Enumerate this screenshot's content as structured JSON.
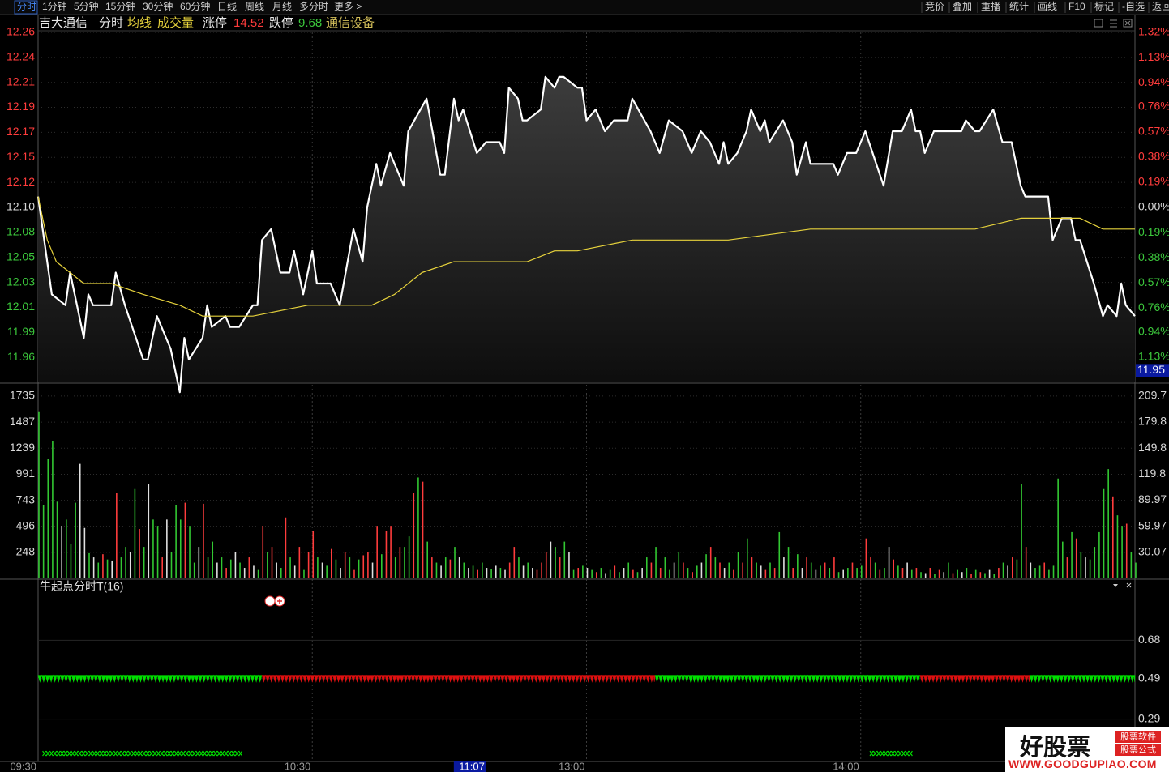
{
  "toolbar": {
    "left": [
      "分时",
      "1分钟",
      "5分钟",
      "15分钟",
      "30分钟",
      "60分钟",
      "日线",
      "周线",
      "月线",
      "多分时",
      "更多 >"
    ],
    "right": [
      "竞价",
      "叠加",
      "重播",
      "统计",
      "画线",
      "F10",
      "标记",
      "-自选",
      "返回"
    ]
  },
  "header": {
    "stock": "吉大通信",
    "limit_up_label": "涨停",
    "limit_up": 14.52,
    "limit_down_label": "跌停",
    "limit_down": 9.68,
    "industry": "通信设备"
  },
  "chart_data": [
    {
      "type": "line",
      "xlim": [
        0,
        240
      ],
      "ylim": [
        11.9391,
        12.2609
      ],
      "yticks": [
        {
          "value": 12.2609,
          "label": "12.26"
        },
        {
          "value": 12.2379,
          "label": "12.24"
        },
        {
          "value": 12.2149,
          "label": "12.21"
        },
        {
          "value": 12.192,
          "label": "12.19"
        },
        {
          "value": 12.169,
          "label": "12.17"
        },
        {
          "value": 12.146,
          "label": "12.15"
        },
        {
          "value": 12.123,
          "label": "12.12"
        },
        {
          "value": 12.1,
          "label": "12.10"
        },
        {
          "value": 12.077,
          "label": "12.08"
        },
        {
          "value": 12.054,
          "label": "12.05"
        },
        {
          "value": 12.031,
          "label": "12.03"
        },
        {
          "value": 12.008,
          "label": "12.01"
        },
        {
          "value": 11.9851,
          "label": "11.99"
        },
        {
          "value": 11.9621,
          "label": "11.96"
        }
      ],
      "y2lim": [
        -1.32,
        1.32
      ],
      "y2ticks": [
        {
          "value": 1.32,
          "label": "1.32%"
        },
        {
          "value": 1.13,
          "label": "1.13%"
        },
        {
          "value": 0.94,
          "label": "0.94%"
        },
        {
          "value": 0.76,
          "label": "0.76%"
        },
        {
          "value": 0.57,
          "label": "0.57%"
        },
        {
          "value": 0.38,
          "label": "0.38%"
        },
        {
          "value": 0.19,
          "label": "0.19%"
        },
        {
          "value": 0,
          "label": "0.00%"
        },
        {
          "value": -0.19,
          "label": "0.19%"
        },
        {
          "value": -0.38,
          "label": "0.38%"
        },
        {
          "value": -0.57,
          "label": "0.57%"
        },
        {
          "value": -0.76,
          "label": "0.76%"
        },
        {
          "value": -0.94,
          "label": "0.94%"
        },
        {
          "value": -1.13,
          "label": "1.13%"
        }
      ],
      "up_color": "#ff3c3c",
      "down_color": "#3cc83c",
      "flat_color": "#d8d8d8",
      "grid": true,
      "cursor_price": 11.95,
      "series": [
        {
          "name": "分时",
          "color": "#ffffff",
          "x": [
            0,
            3,
            6,
            7,
            10,
            11,
            12,
            16,
            17,
            19,
            23,
            24,
            26,
            29,
            31,
            32,
            33,
            36,
            37,
            38,
            41,
            42,
            44,
            47,
            48,
            49,
            51,
            53,
            55,
            56,
            58,
            60,
            61,
            64,
            66,
            69,
            71,
            72,
            74,
            75,
            77,
            80,
            81,
            85,
            88,
            89,
            91,
            92,
            93,
            96,
            98,
            101,
            102,
            103,
            105,
            106,
            107,
            110,
            111,
            113,
            114,
            115,
            118,
            119,
            120,
            122,
            124,
            126,
            129,
            130,
            134,
            136,
            138,
            141,
            143,
            145,
            147,
            149,
            150,
            151,
            153,
            155,
            156,
            158,
            159,
            160,
            163,
            165,
            166,
            168,
            169,
            174,
            175,
            177,
            179,
            181,
            185,
            187,
            189,
            191,
            192,
            193,
            194,
            196,
            202,
            203,
            205,
            206,
            209,
            211,
            213,
            215,
            216,
            221,
            222,
            224,
            226,
            227,
            228,
            231,
            233,
            234,
            236,
            237,
            238,
            240
          ],
          "values": [
            12.11,
            12.02,
            12.01,
            12.04,
            11.98,
            12.02,
            12.01,
            12.01,
            12.04,
            12.01,
            11.96,
            11.96,
            12.0,
            11.97,
            11.93,
            11.98,
            11.96,
            11.98,
            12.01,
            11.99,
            12.0,
            11.99,
            11.99,
            12.01,
            12.01,
            12.07,
            12.08,
            12.04,
            12.04,
            12.06,
            12.02,
            12.06,
            12.03,
            12.03,
            12.01,
            12.08,
            12.05,
            12.1,
            12.14,
            12.12,
            12.15,
            12.12,
            12.17,
            12.2,
            12.13,
            12.13,
            12.2,
            12.18,
            12.19,
            12.15,
            12.16,
            12.16,
            12.15,
            12.21,
            12.2,
            12.18,
            12.18,
            12.19,
            12.22,
            12.21,
            12.22,
            12.22,
            12.21,
            12.21,
            12.18,
            12.19,
            12.17,
            12.18,
            12.18,
            12.2,
            12.17,
            12.15,
            12.18,
            12.17,
            12.15,
            12.17,
            12.16,
            12.14,
            12.16,
            12.14,
            12.15,
            12.17,
            12.19,
            12.17,
            12.18,
            12.16,
            12.18,
            12.16,
            12.13,
            12.16,
            12.14,
            12.14,
            12.13,
            12.15,
            12.15,
            12.17,
            12.12,
            12.17,
            12.17,
            12.19,
            12.17,
            12.17,
            12.15,
            12.17,
            12.17,
            12.18,
            12.17,
            12.17,
            12.19,
            12.16,
            12.16,
            12.12,
            12.11,
            12.11,
            12.07,
            12.09,
            12.09,
            12.07,
            12.07,
            12.03,
            12.0,
            12.01,
            12.0,
            12.03,
            12.01,
            12.0
          ]
        },
        {
          "name": "均线",
          "color": "#e6d23c",
          "x": [
            0,
            2,
            4,
            7,
            10,
            16,
            23,
            31,
            36,
            47,
            59,
            70,
            73,
            78,
            84,
            91,
            107,
            113,
            118,
            130,
            151,
            169,
            187,
            205,
            215,
            228,
            233,
            240
          ],
          "values": [
            12.11,
            12.07,
            12.05,
            12.04,
            12.03,
            12.03,
            12.02,
            12.01,
            12.0,
            12.0,
            12.01,
            12.01,
            12.01,
            12.02,
            12.04,
            12.05,
            12.05,
            12.06,
            12.06,
            12.07,
            12.07,
            12.08,
            12.08,
            12.08,
            12.09,
            12.09,
            12.08,
            12.08
          ]
        }
      ]
    },
    {
      "type": "bar",
      "title": "成交量",
      "title_color": "#e6d23c",
      "xlim": [
        0,
        240
      ],
      "ylim": [
        0,
        1850
      ],
      "yticks": [
        1735,
        1487,
        1239,
        991,
        743,
        496,
        248
      ],
      "y2lim": [
        0,
        223.6
      ],
      "y2ticks": [
        209.7,
        179.8,
        149.8,
        119.8,
        89.97,
        59.97,
        30.07
      ],
      "palette": {
        "u": "#ff3c3c",
        "g": "#32c832",
        "w": "#e0e0e0"
      },
      "directions": [
        "gggggwgggw",
        "wgwgugwugg",
        "wgugwgguwg",
        "gguggwuggw",
        "gugwgwuwgu",
        "guwgugwugu",
        "ugwgugwugu",
        "guuwuguugu",
        "ggugugugwg",
        "ugwgwgugwg",
        "wgwuugwgwu",
        "uuwgugwgug",
        "wgugwgugwg",
        "ugwguguggw",
        "gugugwgugu",
        "wgugugugwu",
        "gugwgugwug",
        "wgugugwgug",
        "guugugwugu",
        "wgugwuguwg",
        "ugwgugugwg",
        "ugwugguwgg",
        "uggggugugw",
        "ggggguggugg"
      ],
      "values": [
        1590,
        700,
        1140,
        1310,
        730,
        500,
        560,
        330,
        720,
        1090,
        480,
        240,
        200,
        150,
        230,
        180,
        170,
        810,
        200,
        300,
        250,
        850,
        470,
        300,
        900,
        560,
        500,
        200,
        560,
        250,
        700,
        560,
        720,
        500,
        150,
        300,
        710,
        200,
        350,
        150,
        200,
        100,
        180,
        250,
        150,
        100,
        200,
        120,
        80,
        500,
        250,
        300,
        150,
        100,
        580,
        200,
        120,
        300,
        80,
        250,
        450,
        200,
        150,
        120,
        280,
        180,
        100,
        250,
        200,
        80,
        180,
        220,
        250,
        150,
        500,
        230,
        450,
        500,
        200,
        300,
        300,
        400,
        810,
        960,
        920,
        350,
        200,
        150,
        120,
        200,
        180,
        300,
        200,
        150,
        100,
        120,
        80,
        150,
        100,
        90,
        120,
        100,
        80,
        150,
        300,
        200,
        120,
        150,
        100,
        80,
        150,
        250,
        350,
        300,
        200,
        350,
        250,
        80,
        100,
        120,
        100,
        80,
        60,
        100,
        50,
        80,
        120,
        60,
        100,
        150,
        80,
        60,
        100,
        200,
        150,
        300,
        100,
        200,
        80,
        150,
        250,
        150,
        100,
        60,
        120,
        150,
        230,
        300,
        200,
        150,
        100,
        150,
        80,
        250,
        150,
        380,
        200,
        150,
        120,
        80,
        150,
        100,
        440,
        200,
        300,
        100,
        230,
        100,
        200,
        150,
        80,
        120,
        150,
        100,
        200,
        60,
        80,
        100,
        150,
        100,
        120,
        380,
        200,
        150,
        80,
        100,
        300,
        180,
        120,
        100,
        150,
        80,
        100,
        60,
        50,
        100,
        40,
        80,
        60,
        150,
        50,
        80,
        60,
        100,
        40,
        80,
        60,
        50,
        80,
        40,
        100,
        150,
        120,
        200,
        180,
        900,
        300,
        150,
        100,
        120,
        150,
        80,
        120,
        950,
        350,
        200,
        440,
        380,
        250,
        200,
        180,
        300,
        440,
        850,
        1040,
        780,
        600,
        500,
        520,
        250,
        150
      ]
    },
    {
      "type": "signal",
      "title": "牛起点分时T(16)",
      "xlim": [
        0,
        240
      ],
      "ylim": [
        0.08,
        0.97
      ],
      "yticks": [
        0.68,
        0.49,
        0.29
      ],
      "xticks": [
        {
          "value": 0,
          "label": "09:30"
        },
        {
          "value": 60,
          "label": "10:30"
        },
        {
          "value": 120,
          "label": "13:00"
        },
        {
          "value": 180,
          "label": "14:00"
        }
      ],
      "cursor_x": {
        "value": 97,
        "label": "11:07"
      },
      "bands": [
        {
          "from": 0,
          "to": 49,
          "value": 0.49,
          "color": "#00e000"
        },
        {
          "from": 49,
          "to": 135,
          "value": 0.49,
          "color": "#e01010"
        },
        {
          "from": 135,
          "to": 193,
          "value": 0.49,
          "color": "#00e000"
        },
        {
          "from": 193,
          "to": 217,
          "value": 0.49,
          "color": "#e01010"
        },
        {
          "from": 217,
          "to": 240,
          "value": 0.49,
          "color": "#00e000"
        }
      ],
      "crosses": [
        {
          "from": 1,
          "to": 44,
          "value": 0.12,
          "color": "#00e000"
        },
        {
          "from": 182,
          "to": 191,
          "value": 0.12,
          "color": "#00e000"
        }
      ]
    }
  ],
  "watermark": {
    "brand": "好股票",
    "tag1": "股票软件",
    "tag2": "股票公式",
    "url": "WWW.GOODGUPIAO.COM"
  }
}
